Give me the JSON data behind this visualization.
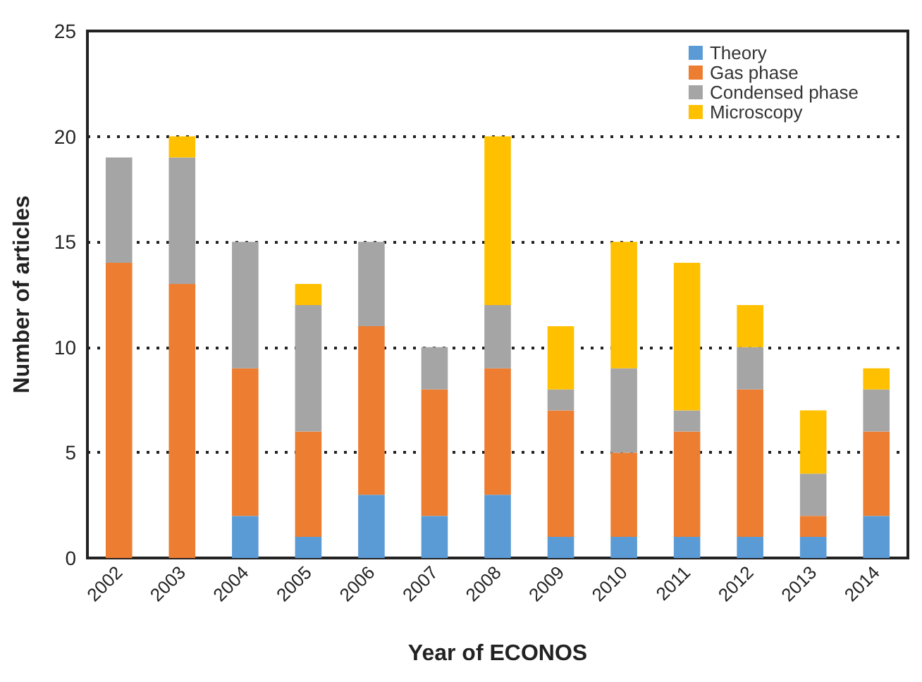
{
  "chart_data": {
    "type": "bar",
    "stacked": true,
    "xlabel": "Year of ECONOS",
    "ylabel": "Number of articles",
    "categories": [
      "2002",
      "2003",
      "2004",
      "2005",
      "2006",
      "2007",
      "2008",
      "2009",
      "2010",
      "2011",
      "2012",
      "2013",
      "2014"
    ],
    "series": [
      {
        "name": "Theory",
        "color": "#5b9bd5",
        "values": [
          0,
          0,
          2,
          1,
          3,
          2,
          3,
          1,
          1,
          1,
          1,
          1,
          2
        ]
      },
      {
        "name": "Gas phase",
        "color": "#ed7d31",
        "values": [
          14,
          13,
          7,
          5,
          8,
          6,
          6,
          6,
          4,
          5,
          7,
          1,
          4
        ]
      },
      {
        "name": "Condensed phase",
        "color": "#a5a5a5",
        "values": [
          5,
          6,
          6,
          6,
          4,
          2,
          3,
          1,
          4,
          1,
          2,
          2,
          2
        ]
      },
      {
        "name": "Microscopy",
        "color": "#ffc000",
        "values": [
          0,
          1,
          0,
          1,
          0,
          0,
          8,
          3,
          6,
          7,
          2,
          3,
          1
        ]
      }
    ],
    "ylim": [
      0,
      25
    ],
    "yticks": [
      0,
      5,
      10,
      15,
      20,
      25
    ],
    "grid": "y",
    "legend": "top right"
  }
}
